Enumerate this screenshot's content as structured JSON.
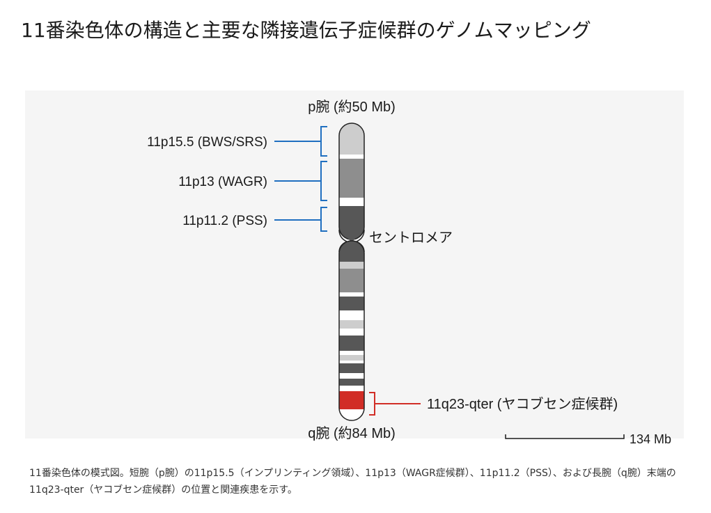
{
  "title": "11番染色体の構造と主要な隣接遺伝子症候群のゲノムマッピング",
  "diagram": {
    "p_arm_label": "p腕 (約50 Mb)",
    "q_arm_label": "q腕 (約84 Mb)",
    "centromere_label": "セントロメア",
    "scale_label": "134 Mb",
    "regions": [
      {
        "label": "11p15.5 (BWS/SRS)",
        "color": "#1f6fc0"
      },
      {
        "label": "11p13 (WAGR)",
        "color": "#1f6fc0"
      },
      {
        "label": "11p11.2 (PSS)",
        "color": "#1f6fc0"
      },
      {
        "label": "11q23-qter (ヤコブセン症候群)",
        "color": "#d12d26"
      }
    ],
    "colors": {
      "highlight": "#d12d26",
      "bracket_blue": "#1f6fc0",
      "band_dark": "#575757",
      "band_mid": "#8e8e8e",
      "band_light": "#cdcdcd",
      "band_white": "#ffffff"
    }
  },
  "caption": "11番染色体の模式図。短腕（p腕）の11p15.5（インプリンティング領域）、11p13（WAGR症候群）、11p11.2（PSS）、および長腕（q腕）末端の11q23-qter（ヤコブセン症候群）の位置と関連疾患を示す。"
}
